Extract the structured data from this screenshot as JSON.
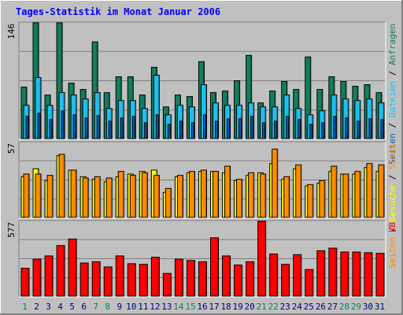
{
  "title": "Tages-Statistik im Monat Januar 2006",
  "colors": {
    "background": "#c0c0c0",
    "anfragen": "#117f5f",
    "dateien": "#1fbfef",
    "seiten": "#005fbf",
    "besuche": "#ffff00",
    "kb": "#ff0000",
    "sites": "#ff8c00",
    "weekend_day": "#117f5f",
    "weekday": "#000080",
    "title": "#0000ff"
  },
  "chart_data": [
    {
      "type": "bar",
      "panel": "top",
      "scale_max_label": "146",
      "ylim": [
        0,
        146
      ],
      "legend": {
        "anfragen": "Anfragen",
        "dateien": "Dateien",
        "seiten": "Seiten",
        "sep": " / "
      },
      "categories": [
        "1",
        "2",
        "3",
        "4",
        "5",
        "6",
        "7",
        "8",
        "9",
        "10",
        "11",
        "12",
        "13",
        "14",
        "15",
        "16",
        "17",
        "18",
        "19",
        "20",
        "21",
        "22",
        "23",
        "24",
        "25",
        "26",
        "27",
        "28",
        "29",
        "30",
        "31"
      ],
      "series": [
        {
          "name": "Anfragen",
          "values": [
            65,
            146,
            55,
            146,
            70,
            62,
            122,
            58,
            78,
            78,
            55,
            90,
            40,
            55,
            53,
            97,
            58,
            60,
            73,
            105,
            45,
            60,
            72,
            62,
            103,
            62,
            78,
            72,
            66,
            68,
            58
          ]
        },
        {
          "name": "Dateien",
          "values": [
            42,
            77,
            42,
            58,
            55,
            50,
            58,
            38,
            48,
            48,
            38,
            80,
            30,
            42,
            40,
            68,
            45,
            42,
            42,
            45,
            40,
            40,
            55,
            38,
            30,
            35,
            55,
            50,
            48,
            50,
            45
          ]
        },
        {
          "name": "Seiten",
          "values": [
            28,
            32,
            24,
            35,
            30,
            26,
            29,
            22,
            26,
            28,
            20,
            30,
            18,
            22,
            20,
            30,
            22,
            25,
            25,
            28,
            20,
            22,
            28,
            24,
            18,
            20,
            28,
            26,
            22,
            25,
            24
          ]
        }
      ]
    },
    {
      "type": "bar",
      "panel": "middle",
      "scale_max_label": "57",
      "ylim": [
        0,
        57
      ],
      "legend": {
        "seiten": "Seiten",
        "besuche": "Besuche",
        "sites": "Sites",
        "sep": " / "
      },
      "categories": [
        "1",
        "2",
        "3",
        "4",
        "5",
        "6",
        "7",
        "8",
        "9",
        "10",
        "11",
        "12",
        "13",
        "14",
        "15",
        "16",
        "17",
        "18",
        "19",
        "20",
        "21",
        "22",
        "23",
        "24",
        "25",
        "26",
        "27",
        "28",
        "29",
        "30",
        "31"
      ],
      "series": [
        {
          "name": "Besuche",
          "values": [
            31,
            37,
            28,
            47,
            36,
            31,
            29,
            27,
            31,
            33,
            35,
            36,
            19,
            31,
            34,
            35,
            35,
            34,
            28,
            32,
            34,
            41,
            29,
            37,
            24,
            26,
            35,
            33,
            33,
            38,
            35
          ]
        },
        {
          "name": "Sites",
          "values": [
            33,
            33,
            32,
            48,
            36,
            30,
            31,
            30,
            35,
            32,
            34,
            32,
            22,
            32,
            35,
            36,
            35,
            39,
            29,
            34,
            33,
            52,
            31,
            40,
            25,
            28,
            39,
            33,
            35,
            41,
            40
          ]
        }
      ]
    },
    {
      "type": "bar",
      "panel": "bottom",
      "scale_max_label": "577",
      "ylim": [
        0,
        577
      ],
      "legend": {
        "kb": "kB"
      },
      "categories": [
        "1",
        "2",
        "3",
        "4",
        "5",
        "6",
        "7",
        "8",
        "9",
        "10",
        "11",
        "12",
        "13",
        "14",
        "15",
        "16",
        "17",
        "18",
        "19",
        "20",
        "21",
        "22",
        "23",
        "24",
        "25",
        "26",
        "27",
        "28",
        "29",
        "30",
        "31"
      ],
      "weekend_days": [
        "1",
        "7",
        "8",
        "14",
        "15",
        "21",
        "22",
        "28",
        "29"
      ],
      "series": [
        {
          "name": "kB",
          "values": [
            215,
            285,
            310,
            390,
            440,
            255,
            265,
            225,
            310,
            250,
            245,
            300,
            175,
            285,
            275,
            265,
            450,
            310,
            240,
            265,
            577,
            325,
            245,
            320,
            205,
            350,
            370,
            340,
            340,
            335,
            330
          ]
        }
      ]
    }
  ]
}
